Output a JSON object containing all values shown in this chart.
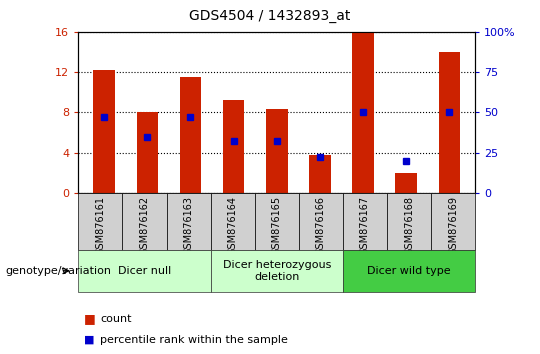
{
  "title": "GDS4504 / 1432893_at",
  "samples": [
    "GSM876161",
    "GSM876162",
    "GSM876163",
    "GSM876164",
    "GSM876165",
    "GSM876166",
    "GSM876167",
    "GSM876168",
    "GSM876169"
  ],
  "counts": [
    12.2,
    8.0,
    11.5,
    9.2,
    8.3,
    3.8,
    16.0,
    2.0,
    14.0
  ],
  "percentiles": [
    47,
    35,
    47,
    32,
    32,
    22,
    50,
    20,
    50
  ],
  "bar_color": "#cc2200",
  "dot_color": "#0000cc",
  "ylim_left": [
    0,
    16
  ],
  "ylim_right": [
    0,
    100
  ],
  "yticks_left": [
    0,
    4,
    8,
    12,
    16
  ],
  "yticks_right": [
    0,
    25,
    50,
    75,
    100
  ],
  "ytick_labels_right": [
    "0",
    "25",
    "50",
    "75",
    "100%"
  ],
  "groups": [
    {
      "label": "Dicer null",
      "start": 0,
      "end": 3,
      "color": "#ccffcc"
    },
    {
      "label": "Dicer heterozygous\ndeletion",
      "start": 3,
      "end": 6,
      "color": "#ccffcc"
    },
    {
      "label": "Dicer wild type",
      "start": 6,
      "end": 9,
      "color": "#44cc44"
    }
  ],
  "group_label": "genotype/variation",
  "legend_count_label": "count",
  "legend_pct_label": "percentile rank within the sample",
  "bar_width": 0.5,
  "grid_color": "#000000",
  "tick_label_color_left": "#cc2200",
  "tick_label_color_right": "#0000cc",
  "bg_color": "#ffffff",
  "sample_box_color": "#d0d0d0"
}
